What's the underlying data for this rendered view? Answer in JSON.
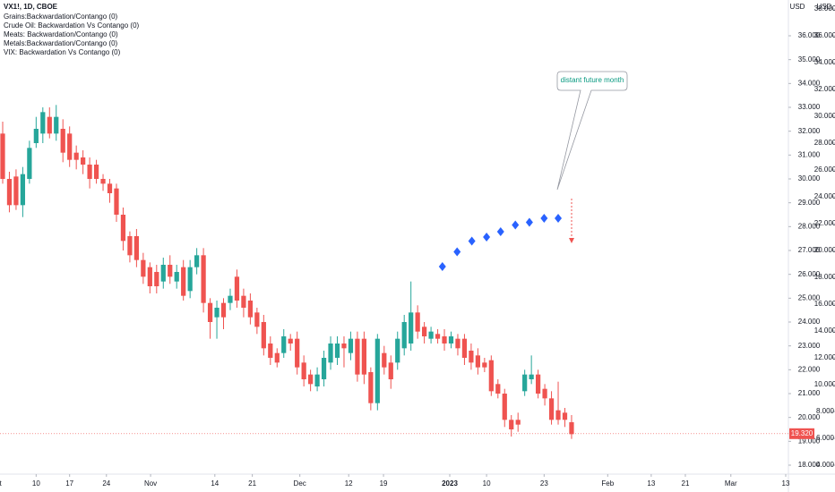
{
  "chart_data": {
    "type": "candlestick",
    "title": "VX1!, 1D, CBOE",
    "legend_lines": [
      "Grains:Backwardation/Contango (0)",
      "Crude Oil: Backwardation Vs Contango (0)",
      "Meats: Backwardation/Contango (0)",
      "Metals:Backwardation/Contango (0)",
      "VIX: Backwardation Vs Contango (0)"
    ],
    "currency_labels": [
      "USD",
      "USD"
    ],
    "annotation": "distant future month",
    "up_color": "#26a69a",
    "down_color": "#ef5350",
    "open": [
      31.9,
      30.0,
      30.1,
      28.9,
      30.0,
      31.5,
      31.9,
      32.6,
      31.9,
      32.1,
      31.9,
      31.1,
      30.9,
      30.6,
      30.6,
      30.0,
      29.8,
      29.6,
      28.5,
      27.6,
      27.6,
      26.6,
      26.3,
      26.1,
      25.7,
      26.4,
      25.7,
      26.3,
      25.3,
      26.3,
      26.8,
      24.8,
      24.2,
      24.8,
      24.8,
      25.9,
      25.1,
      24.9,
      24.4,
      24.0,
      23.1,
      22.7,
      22.7,
      23.3,
      23.3,
      22.3,
      21.8,
      21.3,
      21.6,
      22.3,
      22.5,
      23.1,
      22.7,
      23.3,
      23.3,
      21.9,
      20.6,
      22.7,
      22.3,
      22.3,
      22.9,
      23.1,
      24.4,
      23.8,
      23.3,
      23.5,
      23.4,
      23.1,
      23.3,
      23.3,
      22.8,
      22.6,
      22.3,
      22.4,
      21.4,
      21.0,
      19.9,
      19.9,
      21.1,
      21.6,
      21.8,
      21.2,
      20.8,
      20.3,
      20.2,
      19.8
    ],
    "high": [
      32.4,
      30.3,
      30.4,
      30.5,
      31.6,
      32.6,
      33.0,
      33.0,
      33.1,
      32.5,
      32.2,
      31.4,
      31.2,
      30.9,
      30.8,
      30.2,
      30.0,
      29.8,
      28.8,
      27.8,
      27.9,
      26.9,
      26.5,
      26.4,
      26.7,
      26.8,
      26.4,
      26.6,
      26.6,
      27.1,
      27.1,
      25.0,
      24.9,
      25.0,
      25.4,
      26.2,
      25.4,
      25.2,
      24.6,
      24.3,
      23.4,
      22.9,
      23.7,
      23.5,
      23.6,
      22.6,
      22.0,
      22.1,
      22.8,
      23.4,
      23.4,
      23.4,
      23.6,
      23.6,
      23.6,
      22.1,
      23.5,
      23.0,
      22.6,
      23.6,
      24.3,
      25.7,
      24.7,
      24.0,
      23.8,
      23.7,
      23.7,
      23.6,
      23.5,
      23.5,
      23.1,
      22.9,
      22.5,
      22.6,
      21.6,
      21.2,
      20.1,
      20.2,
      22.0,
      22.6,
      22.0,
      21.4,
      21.1,
      21.5,
      20.4,
      20.1
    ],
    "low": [
      29.8,
      28.6,
      28.7,
      28.4,
      29.8,
      31.3,
      31.5,
      31.7,
      31.6,
      30.7,
      30.5,
      30.4,
      30.2,
      29.6,
      29.8,
      29.5,
      29.0,
      28.2,
      27.0,
      26.5,
      26.3,
      25.6,
      25.2,
      25.2,
      25.4,
      25.6,
      25.4,
      24.9,
      25.0,
      26.0,
      24.4,
      23.3,
      23.3,
      23.7,
      24.5,
      24.6,
      24.2,
      23.9,
      23.5,
      22.6,
      22.2,
      22.1,
      22.5,
      22.8,
      21.8,
      21.3,
      21.1,
      21.1,
      21.3,
      22.0,
      22.2,
      22.1,
      22.4,
      21.5,
      21.4,
      20.3,
      20.3,
      21.8,
      21.2,
      22.0,
      22.6,
      22.8,
      23.3,
      23.1,
      23.1,
      23.1,
      22.8,
      22.9,
      22.6,
      22.2,
      22.0,
      21.8,
      21.9,
      20.9,
      20.8,
      19.6,
      19.2,
      19.4,
      20.9,
      21.4,
      20.8,
      20.5,
      19.7,
      19.7,
      19.6,
      19.1
    ],
    "close": [
      30.0,
      28.9,
      28.9,
      30.2,
      31.3,
      32.1,
      32.8,
      31.9,
      32.6,
      31.1,
      30.8,
      30.8,
      30.6,
      30.0,
      30.0,
      29.8,
      29.4,
      28.5,
      27.4,
      26.8,
      26.6,
      25.9,
      25.5,
      25.5,
      26.4,
      25.9,
      26.1,
      25.1,
      26.3,
      26.8,
      24.8,
      24.0,
      24.6,
      24.2,
      25.1,
      24.9,
      24.6,
      24.2,
      23.8,
      22.9,
      22.5,
      22.3,
      23.4,
      23.1,
      22.1,
      21.6,
      21.4,
      21.8,
      22.5,
      23.1,
      23.1,
      22.9,
      23.3,
      21.8,
      21.8,
      20.6,
      23.3,
      22.1,
      21.6,
      23.3,
      24.0,
      24.4,
      23.6,
      23.4,
      23.6,
      23.3,
      23.1,
      23.4,
      22.9,
      22.5,
      22.3,
      22.1,
      22.1,
      21.1,
      21.0,
      19.9,
      19.5,
      19.7,
      21.8,
      21.8,
      21.0,
      20.8,
      19.9,
      19.9,
      19.9,
      19.3
    ],
    "last_price": {
      "value": 19.32,
      "label": "19.320"
    },
    "series": [
      {
        "color": "#2962ff",
        "axis": "y2",
        "x": [
          65.7,
          67.9,
          70.1,
          72.3,
          74.4,
          76.6,
          78.7,
          80.9,
          83.0
        ],
        "values": [
          18.8,
          19.9,
          20.7,
          21.0,
          21.4,
          21.9,
          22.1,
          22.4,
          22.4
        ]
      }
    ],
    "xlim": [
      -0.4,
      117.4
    ],
    "xticks": [
      {
        "value": -1,
        "label": "Oct"
      },
      {
        "value": 5.0,
        "label": "10"
      },
      {
        "value": 10.0,
        "label": "17"
      },
      {
        "value": 15.5,
        "label": "24"
      },
      {
        "value": 22.1,
        "label": "Nov"
      },
      {
        "value": 31.7,
        "label": "14"
      },
      {
        "value": 37.3,
        "label": "21"
      },
      {
        "value": 44.4,
        "label": "Dec"
      },
      {
        "value": 51.7,
        "label": "12"
      },
      {
        "value": 56.9,
        "label": "19"
      },
      {
        "value": 66.8,
        "label": "2023"
      },
      {
        "value": 72.3,
        "label": "10"
      },
      {
        "value": 80.9,
        "label": "23"
      },
      {
        "value": 90.4,
        "label": "Feb"
      },
      {
        "value": 96.9,
        "label": "13"
      },
      {
        "value": 102.0,
        "label": "21"
      },
      {
        "value": 108.8,
        "label": "Mar"
      },
      {
        "value": 117.0,
        "label": "13"
      }
    ],
    "ylim": [
      17.625,
      37.5
    ],
    "yticks": [
      {
        "value": 36,
        "label": "36.000"
      },
      {
        "value": 35,
        "label": "35.000"
      },
      {
        "value": 34,
        "label": "34.000"
      },
      {
        "value": 33,
        "label": "33.000"
      },
      {
        "value": 32,
        "label": "32.000"
      },
      {
        "value": 31,
        "label": "31.000"
      },
      {
        "value": 30,
        "label": "30.000"
      },
      {
        "value": 29,
        "label": "29.000"
      },
      {
        "value": 28,
        "label": "28.000"
      },
      {
        "value": 27,
        "label": "27.000"
      },
      {
        "value": 26,
        "label": "26.000"
      },
      {
        "value": 25,
        "label": "25.000"
      },
      {
        "value": 24,
        "label": "24.000"
      },
      {
        "value": 23,
        "label": "23.000"
      },
      {
        "value": 22,
        "label": "22.000"
      },
      {
        "value": 21,
        "label": "21.000"
      },
      {
        "value": 20,
        "label": "20.000"
      },
      {
        "value": 19,
        "label": "19.000"
      },
      {
        "value": 18,
        "label": "18.000"
      }
    ],
    "y2lim": [
      3.333,
      38.667
    ],
    "y2ticks": [
      {
        "value": 38,
        "label": "38.000"
      },
      {
        "value": 36,
        "label": "36.000"
      },
      {
        "value": 34,
        "label": "34.000"
      },
      {
        "value": 32,
        "label": "32.000"
      },
      {
        "value": 30,
        "label": "30.000"
      },
      {
        "value": 28,
        "label": "28.000"
      },
      {
        "value": 26,
        "label": "26.000"
      },
      {
        "value": 24,
        "label": "24.000"
      },
      {
        "value": 22,
        "label": "22.000"
      },
      {
        "value": 20,
        "label": "20.000"
      },
      {
        "value": 18,
        "label": "18.000"
      },
      {
        "value": 16,
        "label": "16.000"
      },
      {
        "value": 14,
        "label": "14.000"
      },
      {
        "value": 12,
        "label": "12.000"
      },
      {
        "value": 10,
        "label": "10.000"
      },
      {
        "value": 8,
        "label": "8.000"
      },
      {
        "value": 6,
        "label": "6.000"
      },
      {
        "value": 4,
        "label": "4.000"
      }
    ]
  }
}
